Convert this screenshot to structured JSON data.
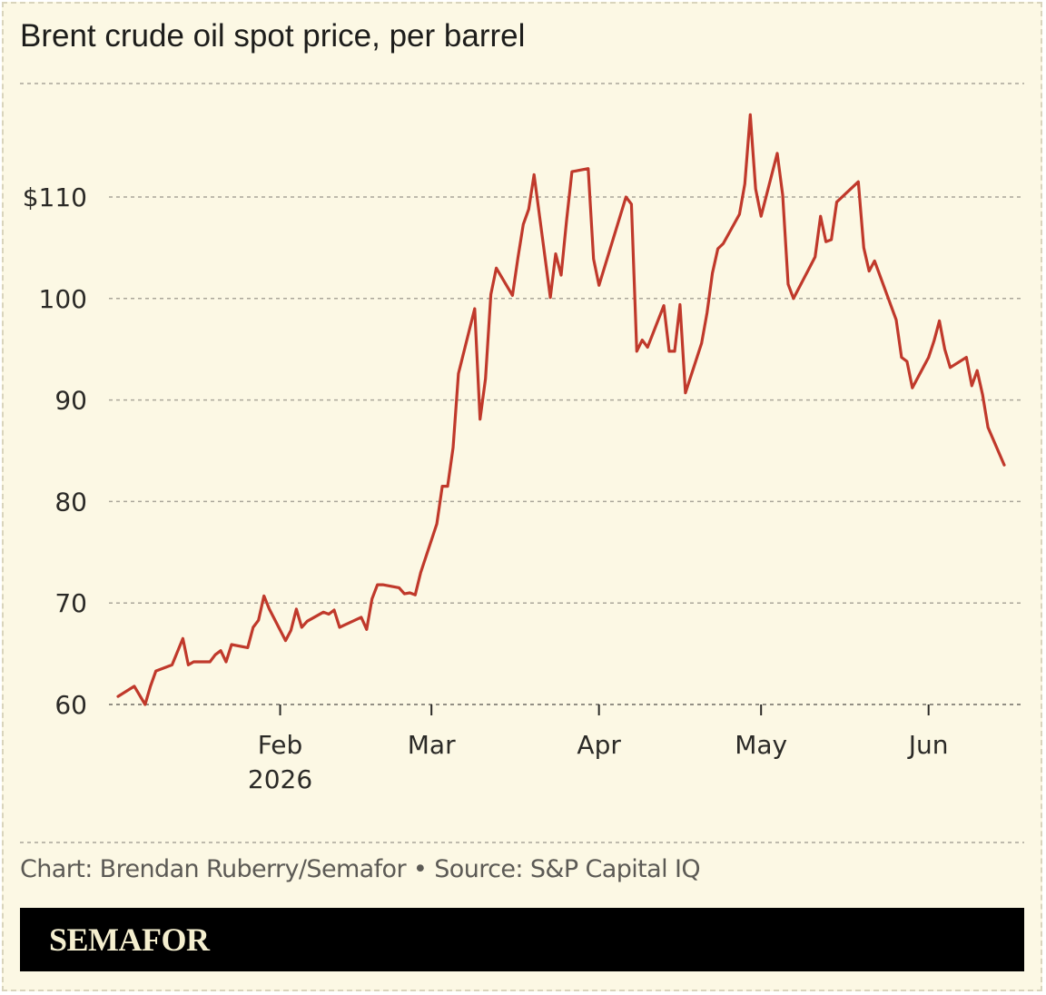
{
  "chart_data": {
    "type": "line",
    "title": "Brent crude oil spot price, per barrel",
    "xlabel": "",
    "ylabel": "",
    "ylim": [
      60,
      116
    ],
    "y_ticks": [
      60,
      70,
      80,
      90,
      100,
      110
    ],
    "y_tick_labels": [
      "60",
      "70",
      "80",
      "90",
      "100",
      "$110"
    ],
    "x_ticks": [
      {
        "label": "Feb",
        "sublabel": "2026",
        "date": "2026-02-01"
      },
      {
        "label": "Mar",
        "sublabel": "",
        "date": "2026-03-01"
      },
      {
        "label": "Apr",
        "sublabel": "",
        "date": "2026-04-01"
      },
      {
        "label": "May",
        "sublabel": "",
        "date": "2026-05-01"
      },
      {
        "label": "Jun",
        "sublabel": "",
        "date": "2026-06-01"
      }
    ],
    "grid": true,
    "color": "#c0392b",
    "series": [
      {
        "values": [
          [
            "2026-01-02",
            60.8
          ],
          [
            "2026-01-05",
            61.8
          ],
          [
            "2026-01-07",
            60.0
          ],
          [
            "2026-01-08",
            61.8
          ],
          [
            "2026-01-09",
            63.3
          ],
          [
            "2026-01-12",
            63.9
          ],
          [
            "2026-01-14",
            66.5
          ],
          [
            "2026-01-15",
            63.9
          ],
          [
            "2026-01-16",
            64.2
          ],
          [
            "2026-01-19",
            64.2
          ],
          [
            "2026-01-20",
            64.9
          ],
          [
            "2026-01-21",
            65.3
          ],
          [
            "2026-01-22",
            64.2
          ],
          [
            "2026-01-23",
            65.9
          ],
          [
            "2026-01-26",
            65.6
          ],
          [
            "2026-01-27",
            67.6
          ],
          [
            "2026-01-28",
            68.3
          ],
          [
            "2026-01-29",
            70.7
          ],
          [
            "2026-01-30",
            69.4
          ],
          [
            "2026-02-02",
            66.3
          ],
          [
            "2026-02-03",
            67.3
          ],
          [
            "2026-02-04",
            69.4
          ],
          [
            "2026-02-05",
            67.6
          ],
          [
            "2026-02-06",
            68.2
          ],
          [
            "2026-02-09",
            69.1
          ],
          [
            "2026-02-10",
            68.9
          ],
          [
            "2026-02-11",
            69.3
          ],
          [
            "2026-02-12",
            67.6
          ],
          [
            "2026-02-16",
            68.6
          ],
          [
            "2026-02-17",
            67.4
          ],
          [
            "2026-02-18",
            70.4
          ],
          [
            "2026-02-19",
            71.8
          ],
          [
            "2026-02-20",
            71.8
          ],
          [
            "2026-02-23",
            71.5
          ],
          [
            "2026-02-24",
            70.9
          ],
          [
            "2026-02-25",
            71.0
          ],
          [
            "2026-02-26",
            70.8
          ],
          [
            "2026-02-27",
            73.0
          ],
          [
            "2026-03-02",
            77.8
          ],
          [
            "2026-03-03",
            81.5
          ],
          [
            "2026-03-04",
            81.5
          ],
          [
            "2026-03-05",
            85.3
          ],
          [
            "2026-03-06",
            92.6
          ],
          [
            "2026-03-09",
            99.0
          ],
          [
            "2026-03-10",
            88.1
          ],
          [
            "2026-03-11",
            92.1
          ],
          [
            "2026-03-12",
            100.4
          ],
          [
            "2026-03-13",
            103.0
          ],
          [
            "2026-03-16",
            100.3
          ],
          [
            "2026-03-17",
            104.0
          ],
          [
            "2026-03-18",
            107.3
          ],
          [
            "2026-03-19",
            108.8
          ],
          [
            "2026-03-20",
            112.2
          ],
          [
            "2026-03-23",
            100.1
          ],
          [
            "2026-03-24",
            104.4
          ],
          [
            "2026-03-25",
            102.3
          ],
          [
            "2026-03-26",
            107.7
          ],
          [
            "2026-03-27",
            112.5
          ],
          [
            "2026-03-30",
            112.8
          ],
          [
            "2026-03-31",
            103.9
          ],
          [
            "2026-04-01",
            101.3
          ],
          [
            "2026-04-06",
            110.0
          ],
          [
            "2026-04-07",
            109.3
          ],
          [
            "2026-04-08",
            94.8
          ],
          [
            "2026-04-09",
            95.9
          ],
          [
            "2026-04-10",
            95.2
          ],
          [
            "2026-04-13",
            99.3
          ],
          [
            "2026-04-14",
            94.8
          ],
          [
            "2026-04-15",
            94.8
          ],
          [
            "2026-04-16",
            99.4
          ],
          [
            "2026-04-17",
            90.7
          ],
          [
            "2026-04-20",
            95.6
          ],
          [
            "2026-04-21",
            98.6
          ],
          [
            "2026-04-22",
            102.5
          ],
          [
            "2026-04-23",
            104.9
          ],
          [
            "2026-04-24",
            105.4
          ],
          [
            "2026-04-27",
            108.3
          ],
          [
            "2026-04-28",
            111.3
          ],
          [
            "2026-04-29",
            118.1
          ],
          [
            "2026-04-30",
            110.8
          ],
          [
            "2026-05-01",
            108.1
          ],
          [
            "2026-05-04",
            114.3
          ],
          [
            "2026-05-05",
            110.2
          ],
          [
            "2026-05-06",
            101.4
          ],
          [
            "2026-05-07",
            100.0
          ],
          [
            "2026-05-11",
            104.1
          ],
          [
            "2026-05-12",
            108.1
          ],
          [
            "2026-05-13",
            105.6
          ],
          [
            "2026-05-14",
            105.8
          ],
          [
            "2026-05-15",
            109.5
          ],
          [
            "2026-05-19",
            111.5
          ],
          [
            "2026-05-20",
            105.0
          ],
          [
            "2026-05-21",
            102.7
          ],
          [
            "2026-05-22",
            103.7
          ],
          [
            "2026-05-26",
            97.9
          ],
          [
            "2026-05-27",
            94.2
          ],
          [
            "2026-05-28",
            93.8
          ],
          [
            "2026-05-29",
            91.2
          ],
          [
            "2026-06-01",
            94.2
          ],
          [
            "2026-06-02",
            95.8
          ],
          [
            "2026-06-03",
            97.8
          ],
          [
            "2026-06-04",
            95.0
          ],
          [
            "2026-06-05",
            93.2
          ],
          [
            "2026-06-08",
            94.2
          ],
          [
            "2026-06-09",
            91.4
          ],
          [
            "2026-06-10",
            92.9
          ],
          [
            "2026-06-11",
            90.5
          ],
          [
            "2026-06-12",
            87.3
          ],
          [
            "2026-06-15",
            83.6
          ]
        ]
      }
    ]
  },
  "footer": {
    "credit": "Chart: Brendan Ruberry/Semafor • Source: S&P Capital IQ",
    "brand": "SEMAFOR"
  }
}
